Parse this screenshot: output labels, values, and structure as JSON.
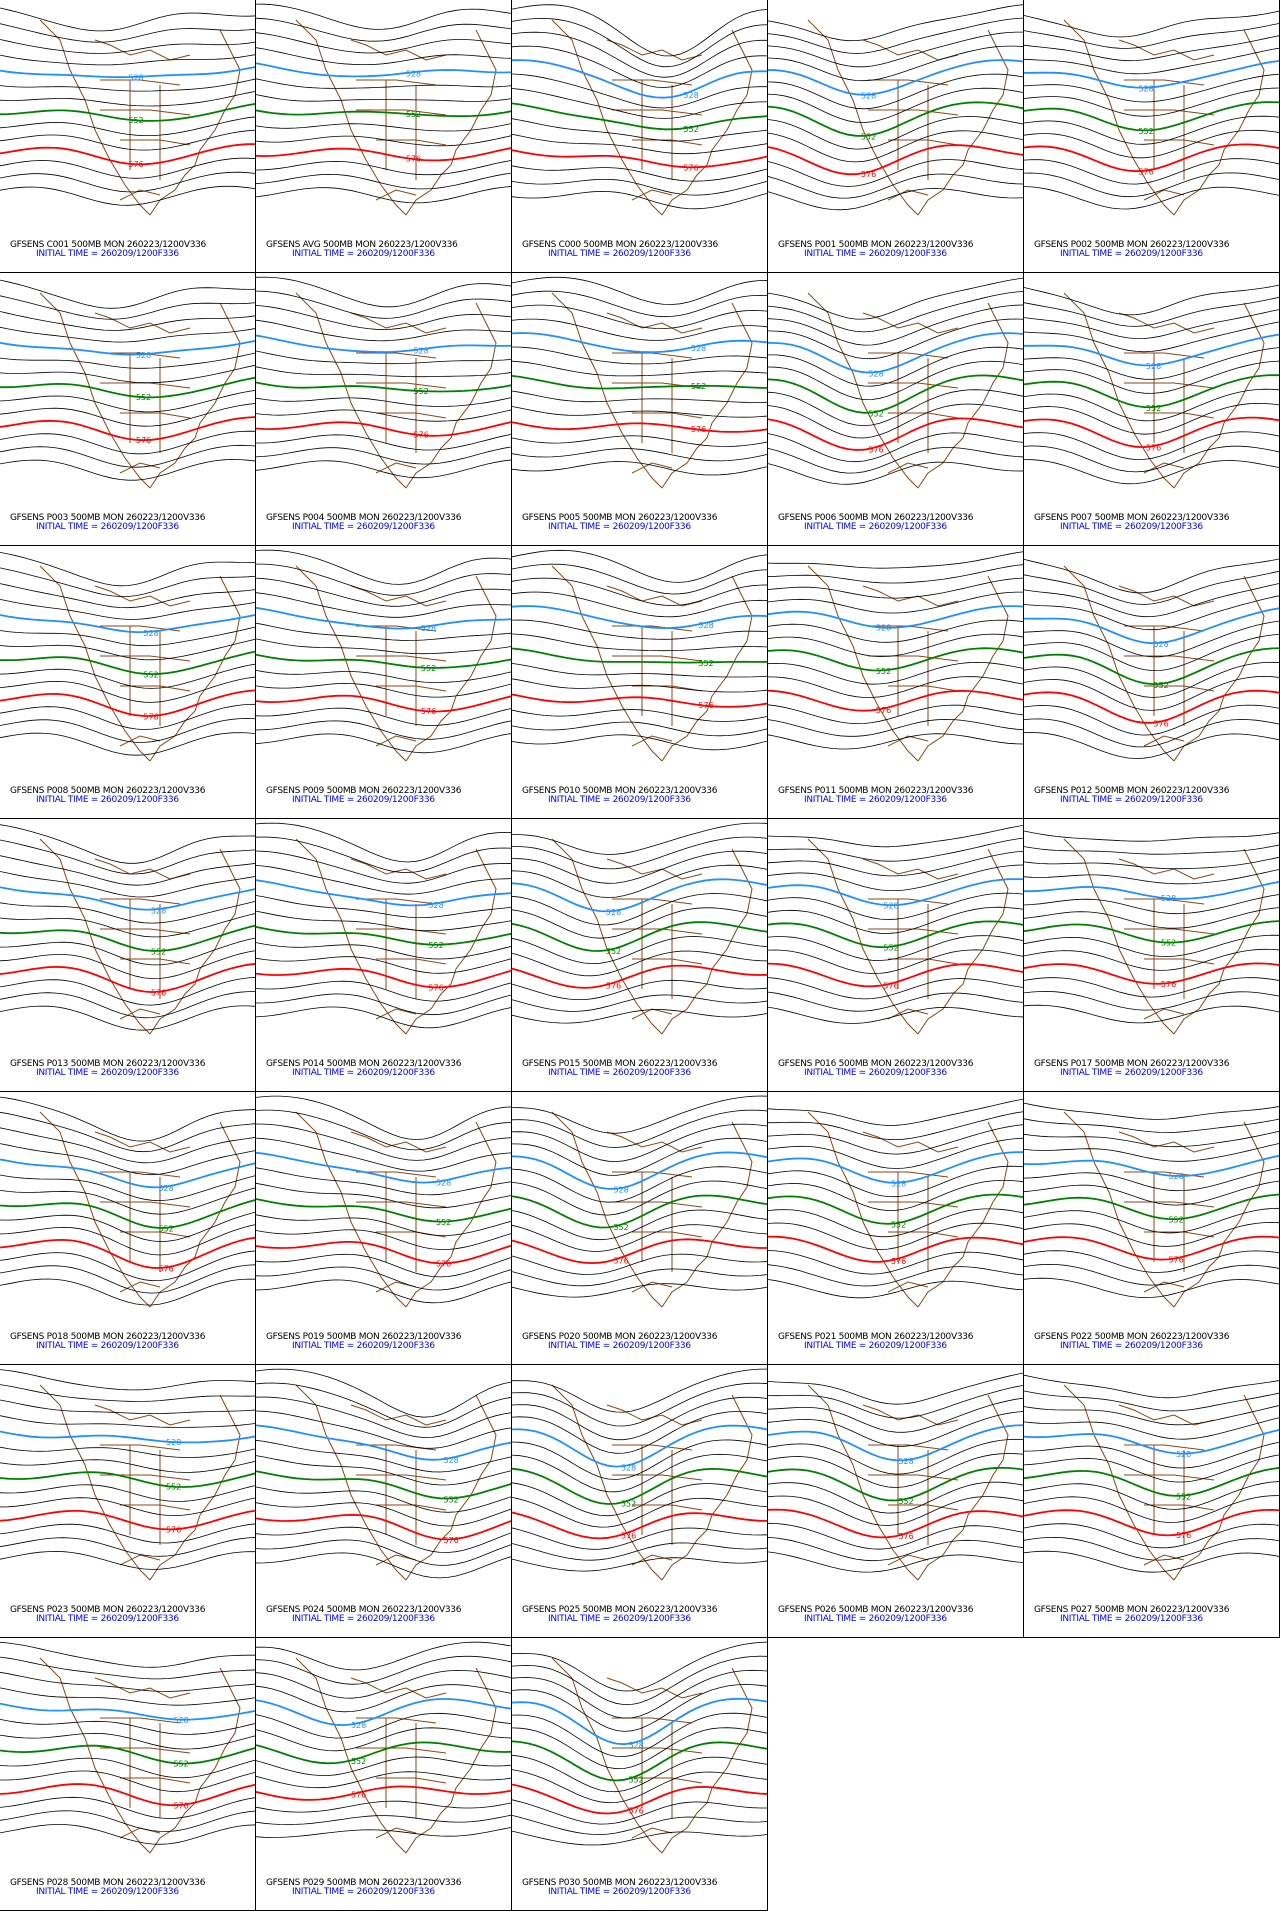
{
  "colors": {
    "c528": "#1e90ff",
    "c552": "#008000",
    "c576": "#ff0000",
    "contour": "#000000",
    "coast": "#8b4513",
    "init_time_text": "#0000ff"
  },
  "contour_labels": {
    "c528": "528",
    "c552": "552",
    "c576": "576"
  },
  "panels": [
    {
      "title": "GFSENS C001 500MB MON 260223/1200V336",
      "init": "INITIAL TIME = 260209/1200F336"
    },
    {
      "title": "GFSENS AVG 500MB MON 260223/1200V336",
      "init": "INITIAL TIME = 260209/1200F336"
    },
    {
      "title": "GFSENS C000 500MB MON 260223/1200V336",
      "init": "INITIAL TIME = 260209/1200F336"
    },
    {
      "title": "GFSENS P001 500MB MON 260223/1200V336",
      "init": "INITIAL TIME = 260209/1200F336"
    },
    {
      "title": "GFSENS P002 500MB MON 260223/1200V336",
      "init": "INITIAL TIME = 260209/1200F336"
    },
    {
      "title": "GFSENS P003 500MB MON 260223/1200V336",
      "init": "INITIAL TIME = 260209/1200F336"
    },
    {
      "title": "GFSENS P004 500MB MON 260223/1200V336",
      "init": "INITIAL TIME = 260209/1200F336"
    },
    {
      "title": "GFSENS P005 500MB MON 260223/1200V336",
      "init": "INITIAL TIME = 260209/1200F336"
    },
    {
      "title": "GFSENS P006 500MB MON 260223/1200V336",
      "init": "INITIAL TIME = 260209/1200F336"
    },
    {
      "title": "GFSENS P007 500MB MON 260223/1200V336",
      "init": "INITIAL TIME = 260209/1200F336"
    },
    {
      "title": "GFSENS P008 500MB MON 260223/1200V336",
      "init": "INITIAL TIME = 260209/1200F336"
    },
    {
      "title": "GFSENS P009 500MB MON 260223/1200V336",
      "init": "INITIAL TIME = 260209/1200F336"
    },
    {
      "title": "GFSENS P010 500MB MON 260223/1200V336",
      "init": "INITIAL TIME = 260209/1200F336"
    },
    {
      "title": "GFSENS P011 500MB MON 260223/1200V336",
      "init": "INITIAL TIME = 260209/1200F336"
    },
    {
      "title": "GFSENS P012 500MB MON 260223/1200V336",
      "init": "INITIAL TIME = 260209/1200F336"
    },
    {
      "title": "GFSENS P013 500MB MON 260223/1200V336",
      "init": "INITIAL TIME = 260209/1200F336"
    },
    {
      "title": "GFSENS P014 500MB MON 260223/1200V336",
      "init": "INITIAL TIME = 260209/1200F336"
    },
    {
      "title": "GFSENS P015 500MB MON 260223/1200V336",
      "init": "INITIAL TIME = 260209/1200F336"
    },
    {
      "title": "GFSENS P016 500MB MON 260223/1200V336",
      "init": "INITIAL TIME = 260209/1200F336"
    },
    {
      "title": "GFSENS P017 500MB MON 260223/1200V336",
      "init": "INITIAL TIME = 260209/1200F336"
    },
    {
      "title": "GFSENS P018 500MB MON 260223/1200V336",
      "init": "INITIAL TIME = 260209/1200F336"
    },
    {
      "title": "GFSENS P019 500MB MON 260223/1200V336",
      "init": "INITIAL TIME = 260209/1200F336"
    },
    {
      "title": "GFSENS P020 500MB MON 260223/1200V336",
      "init": "INITIAL TIME = 260209/1200F336"
    },
    {
      "title": "GFSENS P021 500MB MON 260223/1200V336",
      "init": "INITIAL TIME = 260209/1200F336"
    },
    {
      "title": "GFSENS P022 500MB MON 260223/1200V336",
      "init": "INITIAL TIME = 260209/1200F336"
    },
    {
      "title": "GFSENS P023 500MB MON 260223/1200V336",
      "init": "INITIAL TIME = 260209/1200F336"
    },
    {
      "title": "GFSENS P024 500MB MON 260223/1200V336",
      "init": "INITIAL TIME = 260209/1200F336"
    },
    {
      "title": "GFSENS P025 500MB MON 260223/1200V336",
      "init": "INITIAL TIME = 260209/1200F336"
    },
    {
      "title": "GFSENS P026 500MB MON 260223/1200V336",
      "init": "INITIAL TIME = 260209/1200F336"
    },
    {
      "title": "GFSENS P027 500MB MON 260223/1200V336",
      "init": "INITIAL TIME = 260209/1200F336"
    },
    {
      "title": "GFSENS P028 500MB MON 260223/1200V336",
      "init": "INITIAL TIME = 260209/1200F336"
    },
    {
      "title": "GFSENS P029 500MB MON 260223/1200V336",
      "init": "INITIAL TIME = 260209/1200F336"
    },
    {
      "title": "GFSENS P030 500MB MON 260223/1200V336",
      "init": "INITIAL TIME = 260209/1200F336"
    }
  ]
}
